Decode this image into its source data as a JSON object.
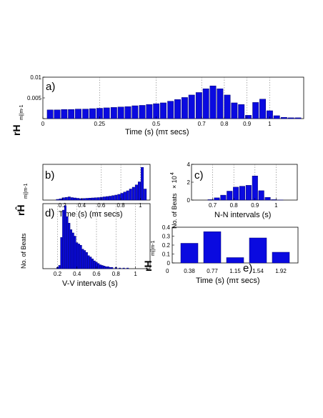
{
  "chart_data": [
    {
      "type": "bar",
      "panel_label": "a)",
      "ylabel_main": "rH",
      "ylabel_sub": "m||m-1",
      "xlabel": "Time (s)  (mτ secs)",
      "ylim": [
        0,
        0.01
      ],
      "yticks": [
        "",
        "0.005",
        "0.01"
      ],
      "yticks_values": [
        0,
        0.005,
        0.01
      ],
      "xlim": [
        0,
        1.15
      ],
      "xticks": [
        "0",
        "0.25",
        "0.5",
        "0.7",
        "0.8",
        "0.9",
        "1"
      ],
      "xticks_values": [
        0,
        0.25,
        0.5,
        0.7,
        0.8,
        0.9,
        1.0
      ],
      "grid_dotted_at": [
        0.25,
        0.5,
        0.7,
        0.8,
        0.9,
        1.0
      ],
      "x": [
        0.032,
        0.063,
        0.094,
        0.125,
        0.156,
        0.188,
        0.219,
        0.25,
        0.281,
        0.313,
        0.344,
        0.375,
        0.406,
        0.438,
        0.469,
        0.5,
        0.531,
        0.563,
        0.594,
        0.625,
        0.656,
        0.688,
        0.719,
        0.75,
        0.781,
        0.813,
        0.844,
        0.875,
        0.906,
        0.938,
        0.969,
        1.0,
        1.031,
        1.063,
        1.094,
        1.125
      ],
      "values": [
        0.0021,
        0.0021,
        0.0022,
        0.0022,
        0.0023,
        0.0023,
        0.0024,
        0.0025,
        0.0026,
        0.0027,
        0.0028,
        0.0029,
        0.0031,
        0.0032,
        0.0034,
        0.0036,
        0.0038,
        0.0042,
        0.0046,
        0.0051,
        0.0057,
        0.0063,
        0.0072,
        0.0079,
        0.0072,
        0.0057,
        0.0038,
        0.0034,
        0.0008,
        0.0039,
        0.0047,
        0.0019,
        0.0007,
        0.0003,
        0.0002,
        0.0002
      ]
    },
    {
      "type": "bar",
      "panel_label": "b)",
      "ylabel_main": "rĤ",
      "ylabel_sub": "m||m-1",
      "xlabel": "Time (s)  (mτ secs)",
      "ylim": [
        0,
        2
      ],
      "xlim": [
        0,
        1.1
      ],
      "xticks": [
        "0.2",
        "0.4",
        "0.6",
        "0.8",
        "1"
      ],
      "xticks_values": [
        0.2,
        0.4,
        0.6,
        0.8,
        1.0
      ],
      "grid_dotted_at": [
        0.6,
        0.8,
        1.0
      ],
      "x": [
        0.15,
        0.18,
        0.21,
        0.24,
        0.27,
        0.3,
        0.33,
        0.36,
        0.39,
        0.42,
        0.45,
        0.48,
        0.51,
        0.54,
        0.57,
        0.6,
        0.63,
        0.66,
        0.69,
        0.72,
        0.75,
        0.78,
        0.81,
        0.84,
        0.87,
        0.9,
        0.93,
        0.96,
        0.99,
        1.02,
        1.05
      ],
      "values": [
        0.04,
        0.07,
        0.13,
        0.15,
        0.18,
        0.14,
        0.12,
        0.1,
        0.08,
        0.09,
        0.1,
        0.11,
        0.12,
        0.13,
        0.14,
        0.16,
        0.18,
        0.2,
        0.22,
        0.25,
        0.28,
        0.32,
        0.38,
        0.45,
        0.52,
        0.62,
        0.72,
        0.85,
        1.02,
        1.83,
        0.62
      ]
    },
    {
      "type": "bar",
      "panel_label": "c)",
      "ylabel": "No. of Beats",
      "ylabel_exp": "× 10",
      "ylabel_exp_power": "4",
      "xlabel": "N-N intervals (s)",
      "ylim": [
        0,
        4
      ],
      "yticks": [
        "0",
        "2",
        "4"
      ],
      "yticks_values": [
        0,
        2,
        4
      ],
      "xlim": [
        0.6,
        1.1
      ],
      "xticks": [
        "0.7",
        "0.8",
        "0.9",
        "1"
      ],
      "xticks_values": [
        0.7,
        0.8,
        0.9,
        1.0
      ],
      "grid_dotted_at": [
        0.7,
        0.8,
        0.9,
        1.0
      ],
      "x": [
        0.69,
        0.72,
        0.75,
        0.78,
        0.81,
        0.84,
        0.87,
        0.9,
        0.93,
        0.96,
        0.99,
        1.02
      ],
      "values": [
        0.05,
        0.25,
        0.55,
        1.0,
        1.45,
        1.55,
        1.65,
        2.7,
        1.05,
        0.3,
        0.05,
        0.02
      ]
    },
    {
      "type": "bar",
      "panel_label": "d)",
      "ylabel": "No. of Beats",
      "xlabel": "V-V intervals (s)",
      "ylim": [
        0,
        100
      ],
      "xlim": [
        0.05,
        1.15
      ],
      "xticks": [
        "0.2",
        "0.4",
        "0.6",
        "0.8",
        "1"
      ],
      "xticks_values": [
        0.2,
        0.4,
        0.6,
        0.8,
        1.0
      ],
      "grid_dotted_at": [
        0.2,
        0.4,
        0.6,
        0.8,
        1.0
      ],
      "x": [
        0.2,
        0.22,
        0.24,
        0.26,
        0.28,
        0.3,
        0.32,
        0.34,
        0.36,
        0.38,
        0.4,
        0.42,
        0.44,
        0.46,
        0.48,
        0.5,
        0.52,
        0.54,
        0.56,
        0.58,
        0.6,
        0.62,
        0.64,
        0.66,
        0.68,
        0.7,
        0.72,
        0.74,
        0.76,
        0.8,
        0.84,
        0.88,
        0.92
      ],
      "values": [
        2,
        5,
        48,
        90,
        97,
        80,
        70,
        60,
        55,
        50,
        40,
        38,
        36,
        30,
        28,
        25,
        20,
        18,
        15,
        12,
        10,
        8,
        6,
        5,
        4,
        3,
        3,
        2,
        2,
        2,
        1,
        1,
        1
      ]
    },
    {
      "type": "bar",
      "panel_label": "e)",
      "ylabel_main": "rH",
      "ylabel_sub": "m||m-1",
      "xlabel": "Time (s)  (mτ secs)",
      "ylim": [
        0,
        0.4
      ],
      "yticks": [
        "0",
        "0.1",
        "0.2",
        "0.3",
        "0.4"
      ],
      "yticks_values": [
        0,
        0.1,
        0.2,
        0.3,
        0.4
      ],
      "categories": [
        "0.38",
        "0.77",
        "1.15",
        "1.54",
        "1.92"
      ],
      "x_origin_label": "0",
      "values": [
        0.22,
        0.35,
        0.06,
        0.28,
        0.12
      ]
    }
  ]
}
